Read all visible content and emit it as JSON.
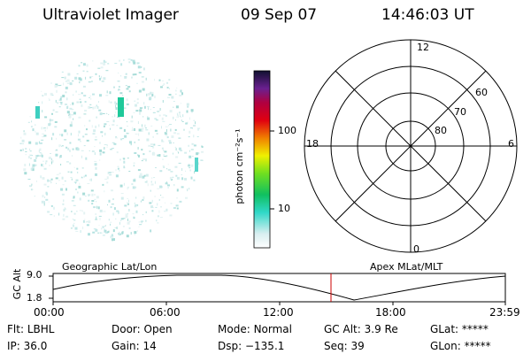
{
  "header": {
    "instrument": "Ultraviolet Imager",
    "date": "09 Sep 07",
    "time": "14:46:03 UT"
  },
  "colorbar": {
    "label": "photon cm⁻²s⁻¹",
    "ticks": [
      "100",
      "10"
    ]
  },
  "polar": {
    "mlt_labels": {
      "top": "12",
      "left": "18",
      "right": "6",
      "bottom": "0"
    },
    "lat_labels": [
      "60",
      "70",
      "80"
    ]
  },
  "timeline": {
    "ylabel": "GC Alt",
    "ymax": "9.0",
    "ymin": "1.8",
    "left_title": "Geographic Lat/Lon",
    "right_title": "Apex MLat/MLT",
    "time_ticks": [
      "00:00",
      "06:00",
      "12:00",
      "18:00",
      "23:59"
    ],
    "current_time": "14:46"
  },
  "status": {
    "flt_label": "Flt:",
    "flt_value": "LBHL",
    "ip_label": "IP:",
    "ip_value": "36.0",
    "door_label": "Door:",
    "door_value": "Open",
    "gain_label": "Gain:",
    "gain_value": "14",
    "mode_label": "Mode:",
    "mode_value": "Normal",
    "dsp_label": "Dsp:",
    "dsp_value": "−135.1",
    "gcalt_label": "GC Alt:",
    "gcalt_value": "3.9 Re",
    "seq_label": "Seq:",
    "seq_value": "39",
    "glat_label": "GLat:",
    "glat_value": "*****",
    "glon_label": "GLon:",
    "glon_value": "*****"
  },
  "colors": {
    "foreground": "#000000",
    "current_time_marker": "#cc0000",
    "aurora_spot": "#1fc99a",
    "speckle": "#8fd8d8"
  }
}
